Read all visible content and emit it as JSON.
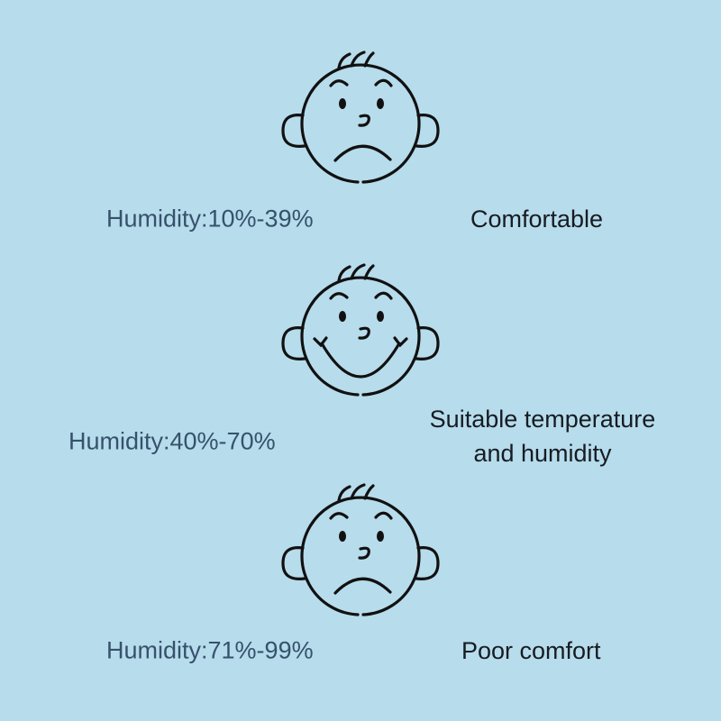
{
  "colors": {
    "background": "#b7dcec",
    "humidity_text": "#36526b",
    "description_text": "#161c22",
    "line": "#111111"
  },
  "rows": [
    {
      "face_icon": "frowning-face-icon",
      "humidity": "Humidity:10%-39%",
      "description": "Comfortable"
    },
    {
      "face_icon": "smiling-face-icon",
      "humidity": "Humidity:40%-70%",
      "description_line1": "Suitable temperature",
      "description_line2": "and humidity"
    },
    {
      "face_icon": "frowning-face-icon",
      "humidity": "Humidity:71%-99%",
      "description": "Poor comfort"
    }
  ]
}
